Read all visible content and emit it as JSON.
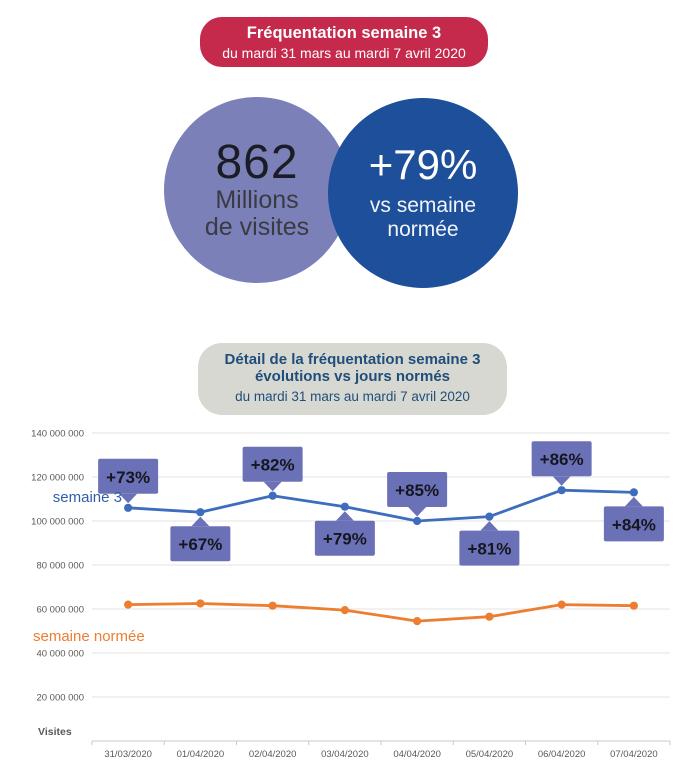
{
  "header_banner": {
    "title": "Fréquentation semaine 3",
    "subtitle": "du mardi 31 mars au mardi 7 avril 2020",
    "bg": "#C5294B",
    "text_color": "#FFFFFF"
  },
  "kpi": {
    "visits_circle": {
      "value": "862",
      "label_line1": "Millions",
      "label_line2": "de visites",
      "bg": "#7B80B9"
    },
    "growth_circle": {
      "value": "+79%",
      "label_line1": "vs semaine",
      "label_line2": "normée",
      "bg": "#1D4F9A"
    }
  },
  "detail_banner": {
    "title_line1": "Détail de la fréquentation semaine 3",
    "title_line2": "évolutions vs jours normés",
    "subtitle": "du mardi 31 mars au mardi 7 avril 2020",
    "bg": "#D8D8D3",
    "text_color": "#1F4E79"
  },
  "chart_data": {
    "type": "line",
    "title": "",
    "xlabel": "",
    "ylabel": "Visites",
    "axis_label": "Visites",
    "grid": true,
    "legend_position": "inline-left",
    "categories": [
      "31/03/2020",
      "01/04/2020",
      "02/04/2020",
      "03/04/2020",
      "04/04/2020",
      "05/04/2020",
      "06/04/2020",
      "07/04/2020"
    ],
    "series": [
      {
        "name": "semaine 3",
        "color": "#3E6DBE",
        "label_color": "#2F5FA8",
        "values": [
          106000000,
          104000000,
          111500000,
          106500000,
          100000000,
          102000000,
          114000000,
          113000000
        ]
      },
      {
        "name": "semaine normée",
        "color": "#ED7D31",
        "label_color": "#ED7D31",
        "values": [
          62000000,
          62500000,
          61500000,
          59500000,
          54500000,
          56500000,
          62000000,
          61500000
        ]
      }
    ],
    "point_labels": [
      {
        "text": "+73%",
        "position": "above"
      },
      {
        "text": "+67%",
        "position": "below"
      },
      {
        "text": "+82%",
        "position": "above"
      },
      {
        "text": "+79%",
        "position": "below"
      },
      {
        "text": "+85%",
        "position": "above"
      },
      {
        "text": "+81%",
        "position": "below"
      },
      {
        "text": "+86%",
        "position": "above"
      },
      {
        "text": "+84%",
        "position": "below"
      }
    ],
    "label_box_color": "#6B71B7",
    "label_text_color": "#16161F",
    "y_ticks": [
      "140 000 000",
      "120 000 000",
      "100 000 000",
      "80 000 000",
      "60 000 000",
      "40 000 000",
      "20 000 000"
    ],
    "y_tick_values": [
      140000000,
      120000000,
      100000000,
      80000000,
      60000000,
      40000000,
      20000000
    ],
    "ylim": [
      0,
      140000000
    ]
  }
}
